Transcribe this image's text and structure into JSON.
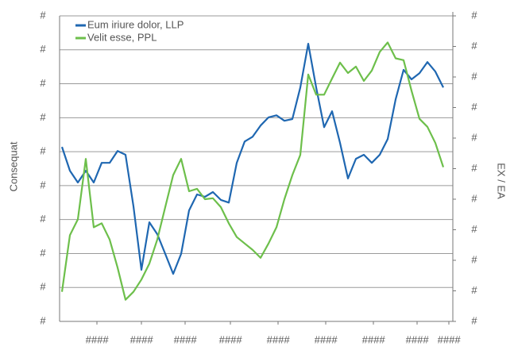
{
  "chart_data": {
    "type": "line",
    "y_label": "Consequat",
    "y2_label": "EX / EA",
    "x": [
      0,
      10,
      20,
      30,
      40,
      50,
      60,
      70,
      80,
      90,
      100,
      110,
      120,
      130,
      140,
      150,
      160,
      170,
      180,
      190,
      200,
      210,
      220,
      230,
      240,
      250,
      260,
      270,
      280,
      290,
      300,
      310,
      320,
      330,
      340,
      350,
      360,
      370,
      380,
      390,
      400,
      410,
      420,
      430,
      440,
      450,
      460,
      470,
      480
    ],
    "xlim": [
      0,
      487
    ],
    "xticks": [
      {
        "value": 44,
        "label": "####"
      },
      {
        "value": 100,
        "label": "####"
      },
      {
        "value": 155,
        "label": "####"
      },
      {
        "value": 212,
        "label": "####"
      },
      {
        "value": 272,
        "label": "####"
      },
      {
        "value": 332,
        "label": "####"
      },
      {
        "value": 392,
        "label": "####"
      },
      {
        "value": 447,
        "label": "####"
      },
      {
        "value": 487,
        "label": "####"
      }
    ],
    "ylim": [
      0,
      9
    ],
    "yticks": [
      {
        "value": 0,
        "label": "#"
      },
      {
        "value": 1,
        "label": "#"
      },
      {
        "value": 2,
        "label": "#"
      },
      {
        "value": 3,
        "label": "#"
      },
      {
        "value": 4,
        "label": "#"
      },
      {
        "value": 5,
        "label": "#"
      },
      {
        "value": 6,
        "label": "#"
      },
      {
        "value": 7,
        "label": "#"
      },
      {
        "value": 8,
        "label": "#"
      },
      {
        "value": 9,
        "label": "#"
      }
    ],
    "y2lim": [
      0,
      10
    ],
    "y2ticks": [
      {
        "value": 0,
        "label": "#"
      },
      {
        "value": 1,
        "label": "#"
      },
      {
        "value": 2,
        "label": "#"
      },
      {
        "value": 3,
        "label": "#"
      },
      {
        "value": 4,
        "label": "#"
      },
      {
        "value": 5,
        "label": "#"
      },
      {
        "value": 6,
        "label": "#"
      },
      {
        "value": 7,
        "label": "#"
      },
      {
        "value": 8,
        "label": "#"
      },
      {
        "value": 9,
        "label": "#"
      },
      {
        "value": 10,
        "label": "#"
      }
    ],
    "grid": true,
    "legend": "upper left",
    "series": [
      {
        "name": "Eum iriure dolor, LLP",
        "color": "#1f67b1",
        "values": [
          5.14,
          4.44,
          4.09,
          4.44,
          4.09,
          4.67,
          4.67,
          5.02,
          4.91,
          3.39,
          1.52,
          2.92,
          2.57,
          1.99,
          1.4,
          1.99,
          3.27,
          3.74,
          3.67,
          3.81,
          3.58,
          3.5,
          4.67,
          5.3,
          5.44,
          5.77,
          6.01,
          6.07,
          5.91,
          5.96,
          6.89,
          8.18,
          6.89,
          5.72,
          6.19,
          5.26,
          4.21,
          4.79,
          4.91,
          4.67,
          4.91,
          5.37,
          6.54,
          7.41,
          7.13,
          7.31,
          7.64,
          7.36,
          6.89
        ]
      },
      {
        "name": "Velit esse, PPL",
        "color": "#6dbf4b",
        "axis": "y2",
        "values": [
          0.97,
          2.82,
          3.34,
          5.32,
          3.08,
          3.21,
          2.68,
          1.76,
          0.71,
          0.97,
          1.37,
          1.89,
          2.68,
          3.74,
          4.79,
          5.32,
          4.26,
          4.34,
          4.0,
          4.03,
          3.74,
          3.21,
          2.76,
          2.55,
          2.34,
          2.08,
          2.55,
          3.08,
          4.0,
          4.79,
          5.45,
          8.08,
          7.42,
          7.42,
          7.95,
          8.47,
          8.13,
          8.34,
          7.87,
          8.21,
          8.82,
          9.13,
          8.61,
          8.55,
          7.55,
          6.63,
          6.37,
          5.84,
          5.05
        ]
      }
    ]
  }
}
